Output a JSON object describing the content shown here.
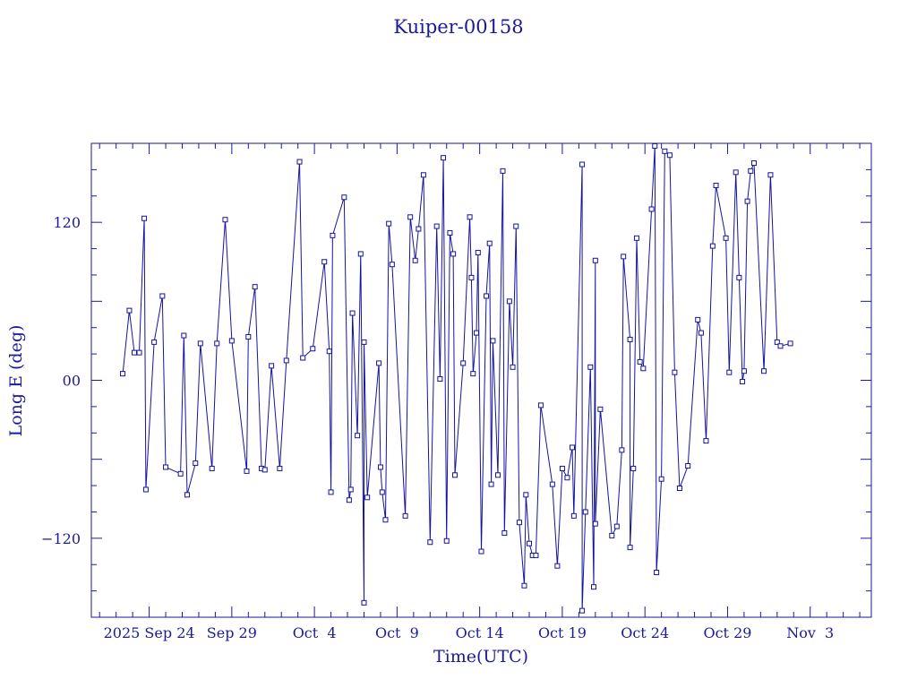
{
  "colors": {
    "ink": "#1a1a9a",
    "line": "#1414a0",
    "background": "#ffffff"
  },
  "chart_data": {
    "type": "line",
    "title": "Kuiper-00158",
    "xlabel": "Time(UTC)",
    "ylabel": "Long E (deg)",
    "x_unit": "days",
    "x_epoch_label": "2025 Sep 24",
    "xlim": [
      -3.5,
      43.7
    ],
    "ylim": [
      -180,
      180
    ],
    "x_tick_labels": [
      {
        "value": 0,
        "label": "2025 Sep 24"
      },
      {
        "value": 5,
        "label": "Sep 29"
      },
      {
        "value": 10,
        "label": "Oct  4"
      },
      {
        "value": 15,
        "label": "Oct  9"
      },
      {
        "value": 20,
        "label": "Oct 14"
      },
      {
        "value": 25,
        "label": "Oct 19"
      },
      {
        "value": 30,
        "label": "Oct 24"
      },
      {
        "value": 35,
        "label": "Oct 29"
      },
      {
        "value": 40,
        "label": "Nov  3"
      }
    ],
    "y_tick_labels": [
      {
        "value": 120,
        "label": "120"
      },
      {
        "value": 0,
        "label": "00"
      },
      {
        "value": -120,
        "label": "−120"
      }
    ],
    "grid": false,
    "series": [
      {
        "marker": "square",
        "points": [
          [
            -1.6,
            5
          ],
          [
            -1.2,
            53
          ],
          [
            -0.9,
            21
          ],
          [
            -0.6,
            21
          ],
          [
            -0.3,
            123
          ],
          [
            -0.2,
            -83
          ],
          [
            0.3,
            29
          ],
          [
            0.8,
            64
          ],
          [
            1.0,
            -66
          ],
          [
            1.9,
            -71
          ],
          [
            2.1,
            34
          ],
          [
            2.3,
            -87
          ],
          [
            2.8,
            -63
          ],
          [
            3.1,
            28
          ],
          [
            3.8,
            -67
          ],
          [
            4.1,
            28
          ],
          [
            4.6,
            122
          ],
          [
            5.0,
            30
          ],
          [
            5.9,
            -69
          ],
          [
            6.0,
            33
          ],
          [
            6.4,
            71
          ],
          [
            6.8,
            -67
          ],
          [
            7.0,
            -68
          ],
          [
            7.4,
            11
          ],
          [
            7.9,
            -67
          ],
          [
            8.3,
            15
          ],
          [
            9.1,
            166
          ],
          [
            9.3,
            17
          ],
          [
            9.9,
            24
          ],
          [
            10.6,
            90
          ],
          [
            10.9,
            22
          ],
          [
            11.0,
            -85
          ],
          [
            11.1,
            110
          ],
          [
            11.8,
            139
          ],
          [
            12.1,
            -91
          ],
          [
            12.2,
            -83
          ],
          [
            12.3,
            51
          ],
          [
            12.6,
            -42
          ],
          [
            12.8,
            96
          ],
          [
            13.0,
            -169
          ],
          [
            13.0,
            29
          ],
          [
            13.2,
            -89
          ],
          [
            13.9,
            13
          ],
          [
            14.0,
            -66
          ],
          [
            14.1,
            -85
          ],
          [
            14.3,
            -106
          ],
          [
            14.5,
            119
          ],
          [
            14.7,
            88
          ],
          [
            15.5,
            -103
          ],
          [
            15.8,
            124
          ],
          [
            16.1,
            91
          ],
          [
            16.3,
            115
          ],
          [
            16.6,
            156
          ],
          [
            17.0,
            -123
          ],
          [
            17.4,
            117
          ],
          [
            17.6,
            1
          ],
          [
            17.8,
            169
          ],
          [
            18.0,
            -122
          ],
          [
            18.2,
            112
          ],
          [
            18.4,
            96
          ],
          [
            18.5,
            -72
          ],
          [
            19.0,
            13
          ],
          [
            19.4,
            124
          ],
          [
            19.5,
            78
          ],
          [
            19.6,
            5
          ],
          [
            19.8,
            36
          ],
          [
            19.9,
            97
          ],
          [
            20.1,
            -130
          ],
          [
            20.4,
            64
          ],
          [
            20.6,
            104
          ],
          [
            20.7,
            -79
          ],
          [
            20.8,
            30
          ],
          [
            21.1,
            -72
          ],
          [
            21.4,
            159
          ],
          [
            21.5,
            -116
          ],
          [
            21.8,
            60
          ],
          [
            22.0,
            10
          ],
          [
            22.2,
            117
          ],
          [
            22.4,
            -108
          ],
          [
            22.7,
            -156
          ],
          [
            22.8,
            -87
          ],
          [
            23.0,
            -124
          ],
          [
            23.2,
            -133
          ],
          [
            23.4,
            -133
          ],
          [
            23.7,
            -19
          ],
          [
            24.4,
            -79
          ],
          [
            24.7,
            -141
          ],
          [
            25.0,
            -67
          ],
          [
            25.3,
            -74
          ],
          [
            25.6,
            -51
          ],
          [
            25.7,
            -103
          ],
          [
            26.2,
            164
          ],
          [
            26.2,
            -175
          ],
          [
            26.4,
            -100
          ],
          [
            26.7,
            10
          ],
          [
            26.9,
            -157
          ],
          [
            27.0,
            91
          ],
          [
            27.0,
            -109
          ],
          [
            27.3,
            -22
          ],
          [
            28.0,
            -118
          ],
          [
            28.3,
            -111
          ],
          [
            28.6,
            -53
          ],
          [
            28.7,
            94
          ],
          [
            29.1,
            31
          ],
          [
            29.1,
            -127
          ],
          [
            29.3,
            -67
          ],
          [
            29.5,
            108
          ],
          [
            29.7,
            14
          ],
          [
            29.9,
            9
          ],
          [
            30.4,
            130
          ],
          [
            30.6,
            178
          ],
          [
            30.7,
            -146
          ],
          [
            31.0,
            -75
          ],
          [
            31.2,
            174
          ],
          [
            31.5,
            171
          ],
          [
            31.8,
            6
          ],
          [
            32.1,
            -82
          ],
          [
            32.6,
            -65
          ],
          [
            33.2,
            46
          ],
          [
            33.4,
            36
          ],
          [
            33.7,
            -46
          ],
          [
            34.1,
            102
          ],
          [
            34.3,
            148
          ],
          [
            34.9,
            108
          ],
          [
            35.1,
            6
          ],
          [
            35.5,
            158
          ],
          [
            35.7,
            78
          ],
          [
            35.9,
            -1
          ],
          [
            36.0,
            7
          ],
          [
            36.2,
            136
          ],
          [
            36.4,
            159
          ],
          [
            36.6,
            165
          ],
          [
            37.2,
            7
          ],
          [
            37.6,
            156
          ],
          [
            38.0,
            29
          ],
          [
            38.2,
            26
          ],
          [
            38.8,
            28
          ]
        ]
      }
    ]
  }
}
